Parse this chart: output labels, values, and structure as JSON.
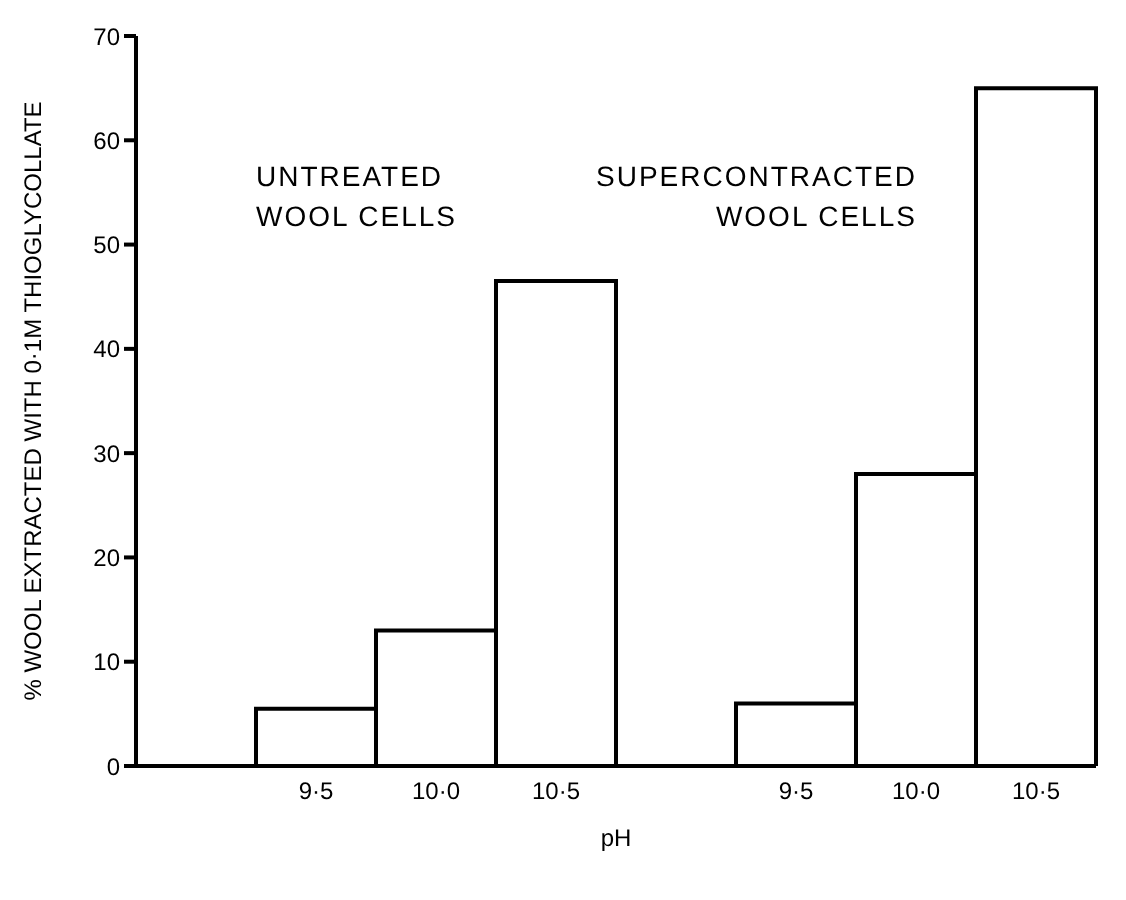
{
  "chart_data": {
    "type": "bar",
    "xlabel": "pH",
    "ylabel": "% WOOL  EXTRACTED WITH 0·1M THIOGLYCOLLATE",
    "categories": [
      null,
      "9·5",
      "10·0",
      "10·5",
      null,
      "9·5",
      "10·0",
      "10·5"
    ],
    "values": [
      null,
      5.5,
      13,
      46.5,
      null,
      6,
      28,
      65
    ],
    "color": "#ffffff",
    "ylim": [
      0,
      70
    ],
    "yticks": [
      0,
      10,
      20,
      30,
      40,
      50,
      60,
      70
    ],
    "annotations": [
      "UNTREATED\nWOOL CELLS",
      "SUPERCONTRACTED\nWOOL CELLS"
    ],
    "grid": false,
    "legend": false
  }
}
